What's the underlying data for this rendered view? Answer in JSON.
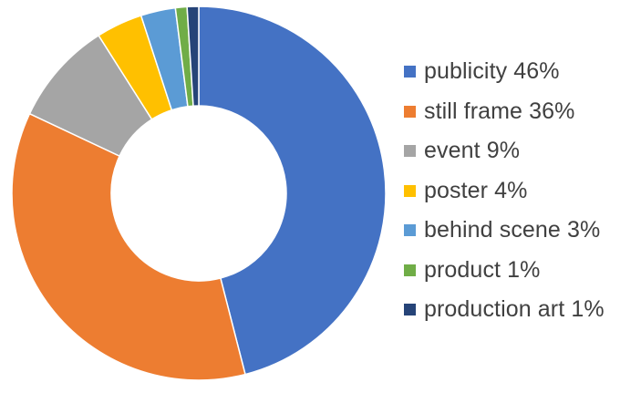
{
  "chart_data": {
    "type": "pie",
    "donut": true,
    "legend_position": "right",
    "series": [
      {
        "name": "publicity",
        "value": 46,
        "label": "publicity  46%",
        "color": "#4472C4"
      },
      {
        "name": "still frame",
        "value": 36,
        "label": "still frame  36%",
        "color": "#ED7D31"
      },
      {
        "name": "event",
        "value": 9,
        "label": "event  9%",
        "color": "#A5A5A5"
      },
      {
        "name": "poster",
        "value": 4,
        "label": "poster  4%",
        "color": "#FFC000"
      },
      {
        "name": "behind scene",
        "value": 3,
        "label": "behind scene  3%",
        "color": "#5B9BD5"
      },
      {
        "name": "product",
        "value": 1,
        "label": "product  1%",
        "color": "#70AD47"
      },
      {
        "name": "production art",
        "value": 1,
        "label": "production art  1%",
        "color": "#264478"
      }
    ]
  }
}
